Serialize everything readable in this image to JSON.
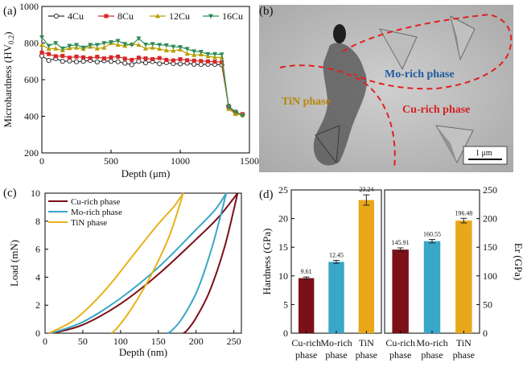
{
  "panels": {
    "a": {
      "label": "(a)"
    },
    "b": {
      "label": "(b)"
    },
    "c": {
      "label": "(c)"
    },
    "d": {
      "label": "(d)"
    }
  },
  "sem": {
    "labels": {
      "mo": "Mo-rich phase",
      "tin": "TiN phase",
      "cu": "Cu-rich phase"
    },
    "scalebar": "1 μm",
    "colors": {
      "mo": "#1f5a9e",
      "tin": "#b8860b",
      "cu": "#d42222",
      "boundary": "#e02020"
    }
  },
  "chart_data": [
    {
      "id": "a",
      "type": "line",
      "xlabel": "Depth (μm)",
      "ylabel": "Microhardness (HV",
      "ylabel_sub": "0.2",
      "ylabel_close": ")",
      "xlim": [
        0,
        1500
      ],
      "ylim": [
        200,
        1000
      ],
      "xticks": [
        0,
        500,
        1000,
        1500
      ],
      "yticks": [
        200,
        400,
        600,
        800,
        1000
      ],
      "legend_position": "top",
      "x": [
        0,
        50,
        100,
        150,
        200,
        250,
        300,
        350,
        400,
        450,
        500,
        550,
        600,
        650,
        700,
        750,
        800,
        850,
        900,
        950,
        1000,
        1050,
        1100,
        1150,
        1200,
        1250,
        1300,
        1350,
        1400,
        1450
      ],
      "series": [
        {
          "name": "4Cu",
          "color": "#333333",
          "marker": "circle-open",
          "values": [
            730,
            705,
            715,
            700,
            702,
            698,
            700,
            705,
            697,
            703,
            700,
            698,
            690,
            682,
            700,
            692,
            699,
            687,
            693,
            688,
            686,
            690,
            684,
            683,
            684,
            683,
            681,
            455,
            422,
            408
          ]
        },
        {
          "name": "8Cu",
          "color": "#d62728",
          "marker": "square",
          "values": [
            748,
            740,
            728,
            730,
            720,
            726,
            722,
            718,
            725,
            716,
            722,
            726,
            715,
            708,
            720,
            716,
            712,
            718,
            708,
            705,
            712,
            706,
            704,
            702,
            700,
            698,
            696,
            450,
            418,
            412
          ]
        },
        {
          "name": "12Cu",
          "color": "#b8a000",
          "marker": "triangle-up",
          "values": [
            790,
            768,
            770,
            760,
            772,
            775,
            768,
            780,
            770,
            775,
            800,
            790,
            785,
            795,
            790,
            770,
            775,
            768,
            760,
            758,
            765,
            742,
            735,
            738,
            728,
            722,
            722,
            440,
            412,
            408
          ]
        },
        {
          "name": "16Cu",
          "color": "#2e8b57",
          "marker": "triangle-down",
          "values": [
            832,
            785,
            800,
            770,
            785,
            790,
            775,
            790,
            790,
            800,
            805,
            812,
            795,
            790,
            825,
            792,
            795,
            790,
            788,
            780,
            778,
            768,
            755,
            752,
            740,
            740,
            738,
            450,
            425,
            405
          ]
        }
      ]
    },
    {
      "id": "c",
      "type": "line",
      "xlabel": "Depth (nm)",
      "ylabel": "Load (mN)",
      "xlim": [
        0,
        260
      ],
      "ylim": [
        0,
        10
      ],
      "xticks": [
        0,
        50,
        100,
        150,
        200,
        250
      ],
      "yticks": [
        0,
        2,
        4,
        6,
        8,
        10
      ],
      "legend_position": "top-left",
      "series": [
        {
          "name": "Cu-rich phase",
          "color": "#7b1018",
          "loading": {
            "x": [
              10,
              50,
              100,
              150,
              200,
              230,
              255
            ],
            "y": [
              0,
              0.6,
              2.1,
              4.2,
              6.7,
              8.3,
              10
            ]
          },
          "unloading": {
            "x": [
              255,
              238,
              218,
              200,
              188,
              183
            ],
            "y": [
              10,
              6.2,
              3.0,
              1.1,
              0.2,
              0
            ]
          }
        },
        {
          "name": "Mo-rich phase",
          "color": "#3aa6c8",
          "loading": {
            "x": [
              8,
              50,
              100,
              150,
              200,
              225,
              240
            ],
            "y": [
              0,
              0.8,
              2.5,
              4.7,
              7.4,
              8.8,
              10
            ]
          },
          "unloading": {
            "x": [
              240,
              222,
              202,
              182,
              168,
              162
            ],
            "y": [
              10,
              6.3,
              3.1,
              1.1,
              0.2,
              0
            ]
          }
        },
        {
          "name": "TiN phase",
          "color": "#e8b21a",
          "loading": {
            "x": [
              5,
              40,
              80,
              120,
              150,
              170,
              183
            ],
            "y": [
              0,
              1.0,
              3.1,
              5.8,
              7.8,
              9.0,
              10
            ]
          },
          "unloading": {
            "x": [
              183,
              165,
              140,
              115,
              96,
              88
            ],
            "y": [
              10,
              7.0,
              4.1,
              1.8,
              0.4,
              0
            ]
          }
        }
      ]
    },
    {
      "id": "d-left",
      "type": "bar",
      "ylabel": "Hardness (GPa)",
      "ylim": [
        0,
        25
      ],
      "yticks": [
        0,
        5,
        10,
        15,
        20,
        25
      ],
      "categories": [
        [
          "Cu-rich",
          "phase"
        ],
        [
          "Mo-rich",
          "phase"
        ],
        [
          "TiN",
          "phase"
        ]
      ],
      "values": [
        9.61,
        12.45,
        23.24
      ],
      "errors": [
        0.2,
        0.25,
        0.9
      ],
      "labels": [
        "9.61",
        "12.45",
        "23.24"
      ],
      "colors": [
        "#7b1018",
        "#3aa6c8",
        "#e8a81a"
      ]
    },
    {
      "id": "d-right",
      "type": "bar",
      "ylabel": "Er (GPa)",
      "ylim": [
        0,
        250
      ],
      "yticks": [
        0,
        50,
        100,
        150,
        200,
        250
      ],
      "categories": [
        [
          "Cu-rich",
          "phase"
        ],
        [
          "Mo-rich",
          "phase"
        ],
        [
          "TiN",
          "phase"
        ]
      ],
      "values": [
        145.91,
        160.55,
        196.48
      ],
      "errors": [
        3,
        3,
        4
      ],
      "labels": [
        "145.91",
        "160.55",
        "196.48"
      ],
      "colors": [
        "#7b1018",
        "#3aa6c8",
        "#e8a81a"
      ]
    }
  ]
}
